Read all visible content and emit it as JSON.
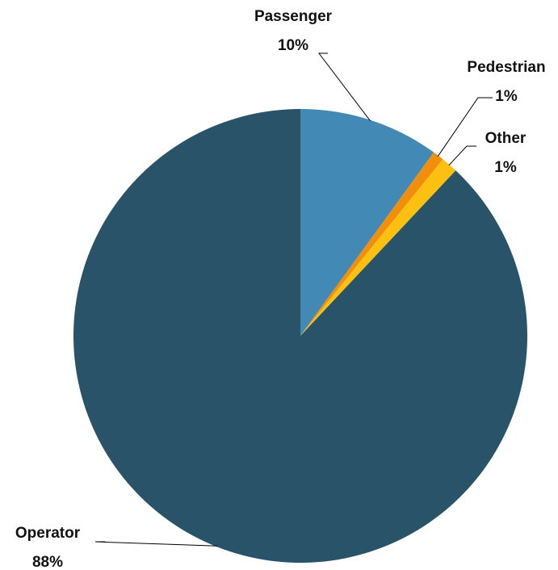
{
  "chart_data": {
    "type": "pie",
    "title": "",
    "slices": [
      {
        "name": "Passenger",
        "percent_label": "10%",
        "value": 10.0,
        "color": "#4289b5"
      },
      {
        "name": "Pedestrian",
        "percent_label": "1%",
        "value": 0.8,
        "color": "#f18f0d"
      },
      {
        "name": "Other",
        "percent_label": "1%",
        "value": 1.2,
        "color": "#fdc010"
      },
      {
        "name": "Operator",
        "percent_label": "88%",
        "value": 88.0,
        "color": "#285369"
      }
    ],
    "legend": "none",
    "start_angle": "12 o'clock",
    "direction": "clockwise"
  }
}
